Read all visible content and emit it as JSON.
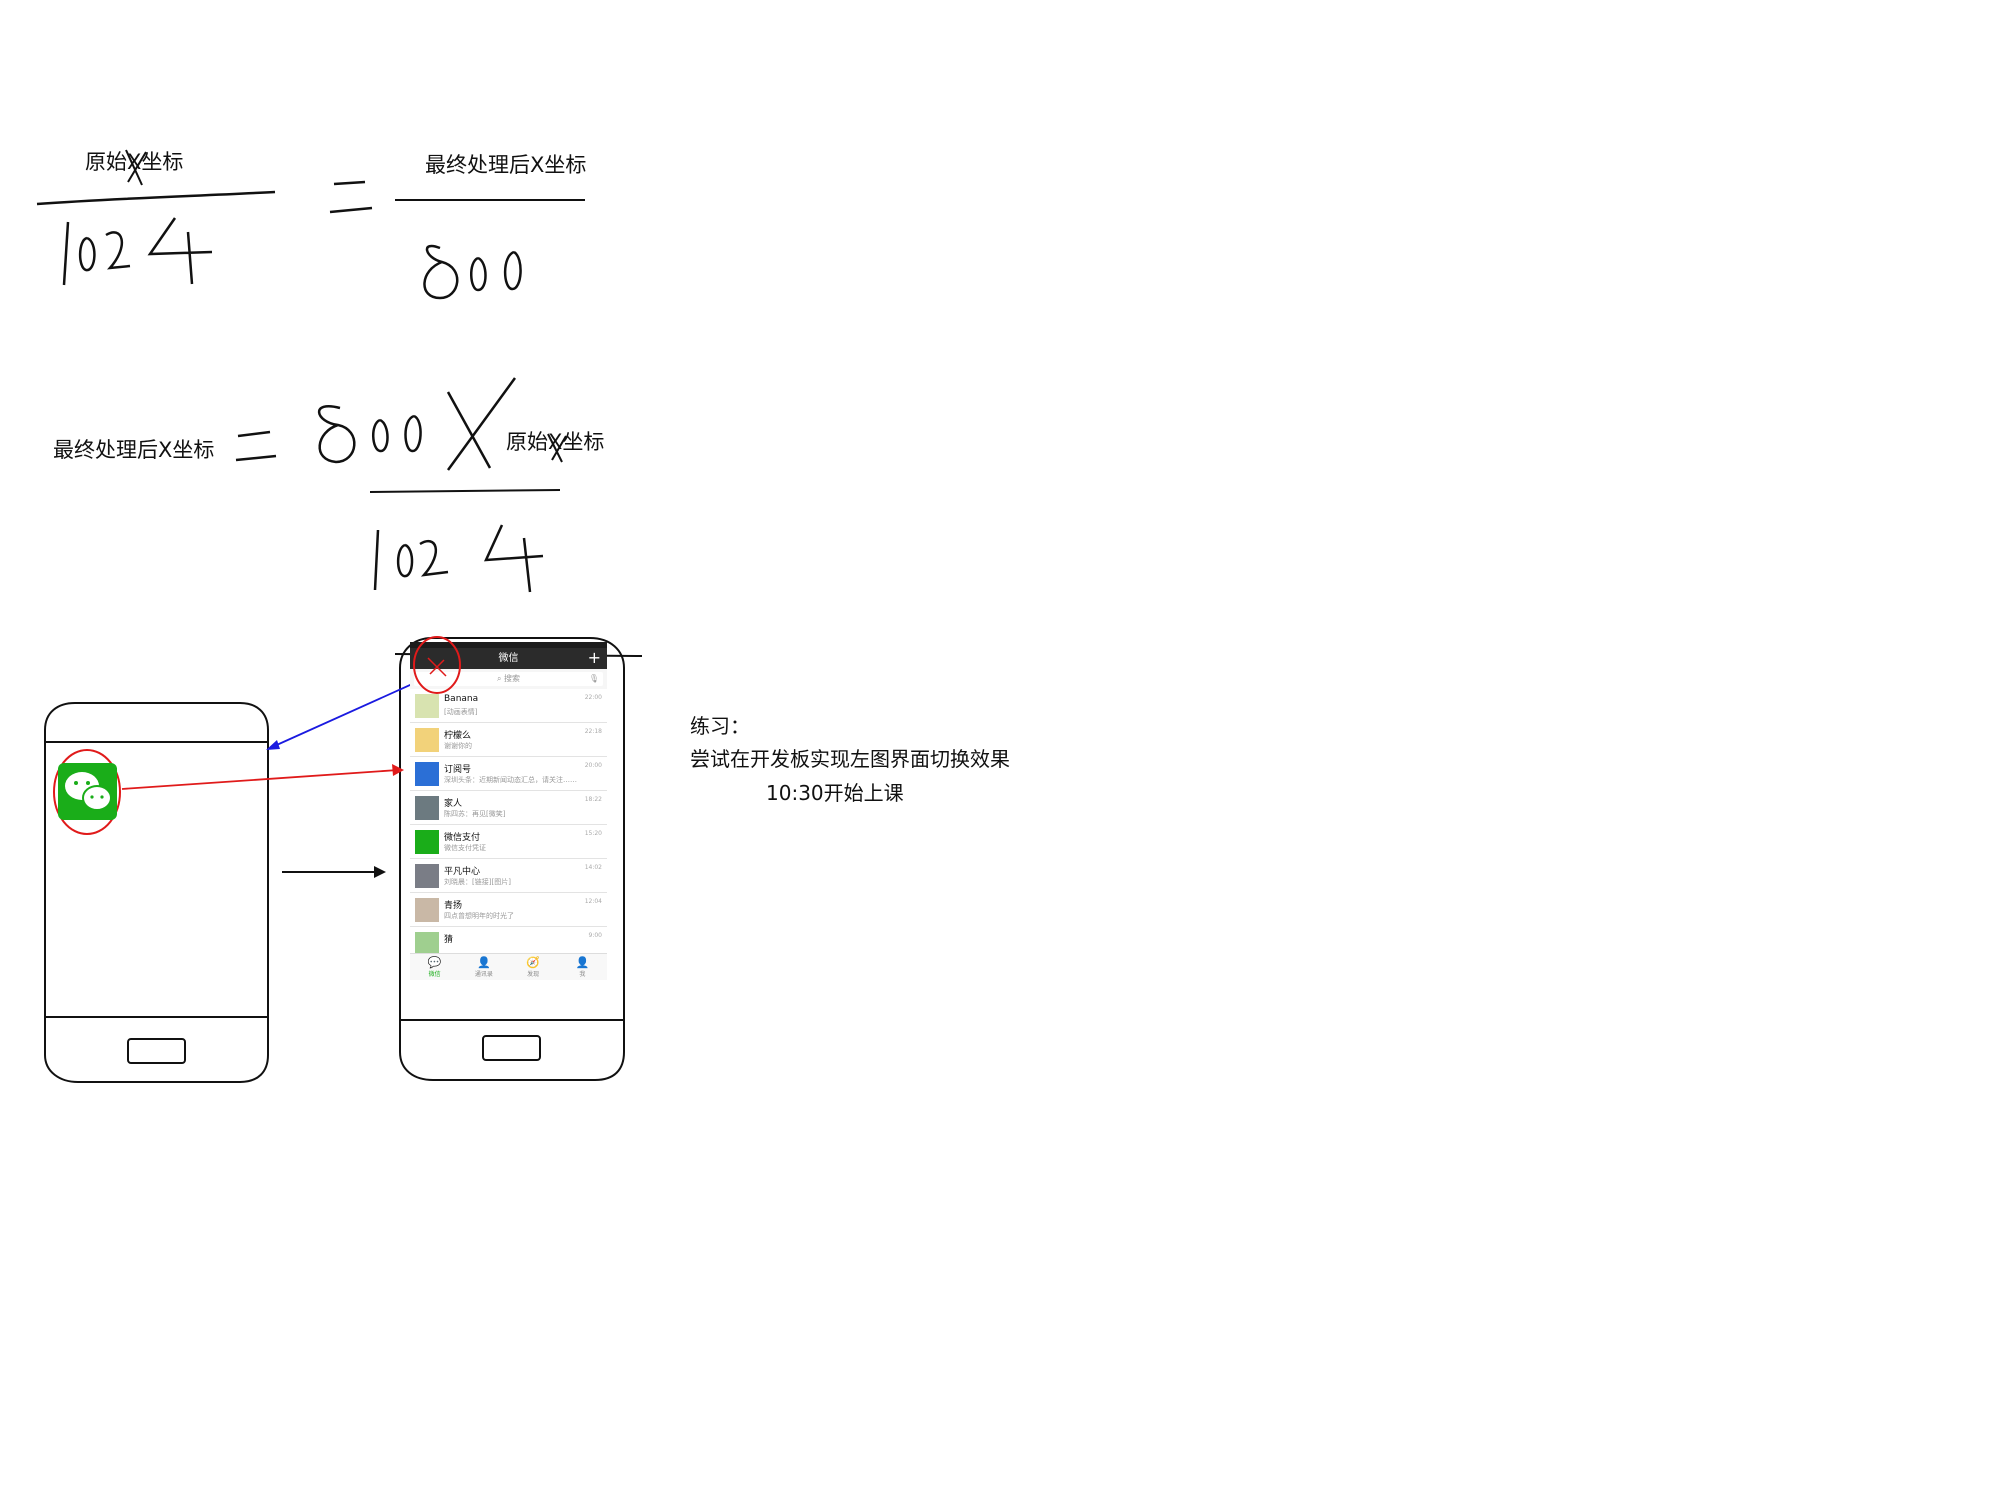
{
  "formula": {
    "orig_x_label": "原始X坐标",
    "final_x_label": "最终处理后X坐标",
    "num_1024": "1024",
    "num_800": "800",
    "times_x": "X"
  },
  "exercise": {
    "title": "练习：",
    "task": "尝试在开发板实现左图界面切换效果",
    "time_note": "10:30开始上课"
  },
  "wechat": {
    "title": "微信",
    "search_placeholder": "搜索",
    "chats": [
      {
        "name": "Banana",
        "msg": "[动画表情]",
        "time": "22:00",
        "color": "#d8e3b0"
      },
      {
        "name": "柠檬么",
        "msg": "谢谢你的",
        "time": "22:18",
        "color": "#f2d27a"
      },
      {
        "name": "订阅号",
        "msg": "深圳头条：近期新闻动态汇总，请关注……",
        "time": "20:00",
        "color": "#2b6fd6"
      },
      {
        "name": "家人",
        "msg": "陈四苏：再见[微笑]",
        "time": "18:22",
        "color": "#6c7a80"
      },
      {
        "name": "微信支付",
        "msg": "微信支付凭证",
        "time": "15:20",
        "color": "#1aad19"
      },
      {
        "name": "平凡中心",
        "msg": "刘晓晨：[链接][图片]",
        "time": "14:02",
        "color": "#7a7d86"
      },
      {
        "name": "青扬",
        "msg": "四点曾想明年的时光了",
        "time": "12:04",
        "color": "#c9b8a6"
      },
      {
        "name": "猜",
        "msg": "",
        "time": "9:00",
        "color": "#9fcf8f"
      }
    ],
    "tabs": [
      {
        "label": "微信",
        "icon": "chat-icon"
      },
      {
        "label": "通讯录",
        "icon": "contacts-icon"
      },
      {
        "label": "发现",
        "icon": "compass-icon"
      },
      {
        "label": "我",
        "icon": "me-icon"
      }
    ]
  },
  "colors": {
    "wechat_green": "#1aad19",
    "arrow_blue": "#1a1ae0",
    "arrow_red": "#e01a1a"
  }
}
